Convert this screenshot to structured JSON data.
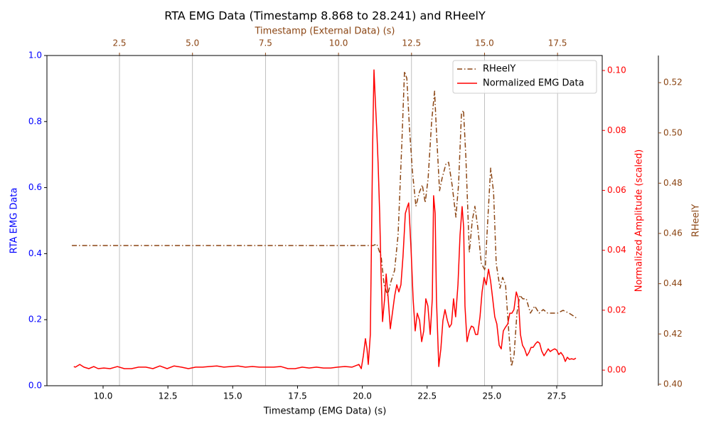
{
  "chart_data": {
    "type": "line",
    "title": "RTA EMG Data (Timestamp 8.868 to 28.241) and RHeelY",
    "xlabel": "Timestamp (EMG Data) (s)",
    "x2label": "Timestamp (External Data) (s)",
    "ylabel": "RTA EMG Data",
    "y2label": "Normalized Amplitude (scaled)",
    "y3label": "RHeelY",
    "xlim": [
      7.833,
      29.255
    ],
    "xticks": [
      {
        "value": 10,
        "label": "10.0"
      },
      12.5,
      {
        "value": 15,
        "label": "15.0"
      },
      17.5,
      {
        "value": 20,
        "label": "20.0"
      },
      22.5,
      {
        "value": 25,
        "label": "25.0"
      },
      27.5
    ],
    "x2lim": [
      0.016,
      19.03
    ],
    "x2ticks": [
      2.5,
      {
        "value": 5,
        "label": "5.0"
      },
      7.5,
      {
        "value": 10,
        "label": "10.0"
      },
      12.5,
      {
        "value": 15,
        "label": "15.0"
      },
      17.5
    ],
    "ylim": [
      0,
      1
    ],
    "yticks": [
      {
        "value": 0,
        "label": "0.0"
      },
      0.2,
      0.4,
      0.6,
      0.8,
      {
        "value": 1,
        "label": "1.0"
      }
    ],
    "y2lim": [
      -0.0052,
      0.105
    ],
    "y2ticks": [
      {
        "value": 0,
        "label": "0.00"
      },
      0.02,
      0.04,
      0.06,
      0.08,
      {
        "value": 0.1,
        "label": "0.10"
      }
    ],
    "y3lim": [
      0.3994,
      0.5308
    ],
    "y3ticks": [
      {
        "value": 0.4,
        "label": "0.40"
      },
      0.42,
      0.44,
      0.46,
      0.48,
      {
        "value": 0.5,
        "label": "0.50"
      },
      0.52
    ],
    "ycolor": "#0000ff",
    "y2color": "#ff0000",
    "y3color": "#8b4513",
    "x2color": "#8b4513",
    "grid": "x2",
    "legend": "upper right",
    "series": [
      {
        "name": "RHeelY",
        "color": "#8b4513",
        "dash": "dashdot",
        "xaxis": "x2",
        "axis": "y3",
        "x": [
          0.87,
          11.19,
          11.31,
          11.46,
          11.56,
          11.68,
          11.8,
          11.92,
          12.04,
          12.17,
          12.26,
          12.34,
          12.43,
          12.53,
          12.65,
          12.77,
          12.87,
          12.97,
          13.07,
          13.19,
          13.29,
          13.36,
          13.46,
          13.55,
          13.68,
          13.77,
          13.89,
          14.02,
          14.11,
          14.21,
          14.28,
          14.36,
          14.48,
          14.58,
          14.67,
          14.77,
          14.89,
          15.02,
          15.11,
          15.21,
          15.31,
          15.4,
          15.53,
          15.62,
          15.72,
          15.82,
          15.92,
          16.01,
          16.11,
          16.21,
          16.31,
          16.43,
          16.57,
          16.72,
          16.87,
          17.01,
          17.16,
          17.3,
          17.5,
          17.69,
          17.89,
          18.08,
          18.18
        ],
        "values": [
          0.4552,
          0.4552,
          0.4558,
          0.4509,
          0.4396,
          0.4354,
          0.441,
          0.4453,
          0.4594,
          0.4962,
          0.5245,
          0.5217,
          0.5019,
          0.4849,
          0.4708,
          0.4764,
          0.4793,
          0.4722,
          0.4821,
          0.5047,
          0.5166,
          0.4991,
          0.477,
          0.4821,
          0.4877,
          0.4883,
          0.4793,
          0.4665,
          0.4793,
          0.5076,
          0.509,
          0.4906,
          0.4524,
          0.4651,
          0.4708,
          0.4623,
          0.4481,
          0.4453,
          0.4651,
          0.486,
          0.4764,
          0.4481,
          0.4382,
          0.4425,
          0.4396,
          0.4226,
          0.4071,
          0.4113,
          0.4283,
          0.4354,
          0.434,
          0.434,
          0.4283,
          0.4311,
          0.4283,
          0.4297,
          0.4283,
          0.4283,
          0.4283,
          0.4294,
          0.4283,
          0.4269,
          0.426
        ]
      },
      {
        "name": "Normalized EMG Data",
        "color": "#ff0000",
        "dash": "solid",
        "xaxis": "x",
        "axis": "y2",
        "x": [
          8.87,
          8.93,
          9.1,
          9.26,
          9.45,
          9.64,
          9.81,
          10.03,
          10.27,
          10.55,
          10.82,
          11.1,
          11.37,
          11.65,
          11.92,
          12.19,
          12.47,
          12.74,
          13.02,
          13.29,
          13.57,
          13.84,
          14.11,
          14.39,
          14.66,
          14.94,
          15.21,
          15.49,
          15.76,
          16.03,
          16.31,
          16.58,
          16.86,
          17.13,
          17.41,
          17.68,
          17.95,
          18.23,
          18.5,
          18.78,
          19.05,
          19.33,
          19.6,
          19.87,
          19.96,
          20.04,
          20.12,
          20.18,
          20.23,
          20.31,
          20.4,
          20.45,
          20.5,
          20.56,
          20.61,
          20.67,
          20.72,
          20.78,
          20.86,
          20.92,
          21.0,
          21.08,
          21.16,
          21.25,
          21.33,
          21.41,
          21.49,
          21.57,
          21.66,
          21.74,
          21.79,
          21.88,
          21.96,
          22.04,
          22.12,
          22.21,
          22.29,
          22.37,
          22.45,
          22.53,
          22.62,
          22.7,
          22.75,
          22.81,
          22.86,
          22.95,
          23.03,
          23.11,
          23.19,
          23.28,
          23.36,
          23.44,
          23.52,
          23.6,
          23.69,
          23.77,
          23.85,
          23.91,
          23.96,
          24.04,
          24.13,
          24.21,
          24.29,
          24.37,
          24.45,
          24.54,
          24.62,
          24.7,
          24.78,
          24.87,
          24.95,
          25.03,
          25.11,
          25.19,
          25.28,
          25.36,
          25.44,
          25.52,
          25.61,
          25.69,
          25.77,
          25.85,
          25.94,
          26.02,
          26.1,
          26.18,
          26.26,
          26.35,
          26.43,
          26.51,
          26.59,
          26.68,
          26.76,
          26.84,
          26.92,
          27.01,
          27.09,
          27.17,
          27.25,
          27.33,
          27.42,
          27.5,
          27.58,
          27.66,
          27.75,
          27.83,
          27.91,
          27.99,
          28.07,
          28.16,
          28.24
        ],
        "values": [
          0.0012,
          0.001,
          0.0019,
          0.001,
          0.0005,
          0.0012,
          0.0005,
          0.0007,
          0.0005,
          0.0012,
          0.0005,
          0.0005,
          0.001,
          0.001,
          0.0005,
          0.0014,
          0.0005,
          0.0014,
          0.001,
          0.0005,
          0.001,
          0.001,
          0.0012,
          0.0014,
          0.001,
          0.0012,
          0.0014,
          0.001,
          0.0012,
          0.001,
          0.001,
          0.001,
          0.0012,
          0.0005,
          0.0005,
          0.001,
          0.0007,
          0.001,
          0.0007,
          0.0007,
          0.001,
          0.0012,
          0.001,
          0.0019,
          0.0005,
          0.0048,
          0.0105,
          0.0071,
          0.0019,
          0.0119,
          0.076,
          0.1002,
          0.0903,
          0.0796,
          0.0689,
          0.0523,
          0.0333,
          0.0162,
          0.0238,
          0.0321,
          0.0238,
          0.0138,
          0.019,
          0.0249,
          0.0285,
          0.0261,
          0.0285,
          0.038,
          0.0523,
          0.0546,
          0.0558,
          0.0404,
          0.0238,
          0.0131,
          0.019,
          0.0166,
          0.0095,
          0.0131,
          0.0238,
          0.0214,
          0.0119,
          0.0238,
          0.0582,
          0.0523,
          0.0238,
          0.0012,
          0.0071,
          0.0166,
          0.0202,
          0.0166,
          0.0143,
          0.0154,
          0.0238,
          0.0178,
          0.0285,
          0.0451,
          0.0546,
          0.0475,
          0.0214,
          0.0095,
          0.0131,
          0.0147,
          0.0143,
          0.0119,
          0.0119,
          0.0178,
          0.0261,
          0.0309,
          0.0285,
          0.0337,
          0.0297,
          0.0238,
          0.0178,
          0.0154,
          0.0083,
          0.0071,
          0.0131,
          0.0143,
          0.0154,
          0.019,
          0.019,
          0.0202,
          0.0261,
          0.0238,
          0.0119,
          0.0083,
          0.0071,
          0.0048,
          0.0059,
          0.0076,
          0.0076,
          0.0088,
          0.0095,
          0.009,
          0.0064,
          0.0048,
          0.0059,
          0.0071,
          0.0062,
          0.0067,
          0.0071,
          0.0067,
          0.0052,
          0.0059,
          0.0048,
          0.0029,
          0.0043,
          0.0036,
          0.0038,
          0.0036,
          0.004
        ]
      }
    ]
  }
}
